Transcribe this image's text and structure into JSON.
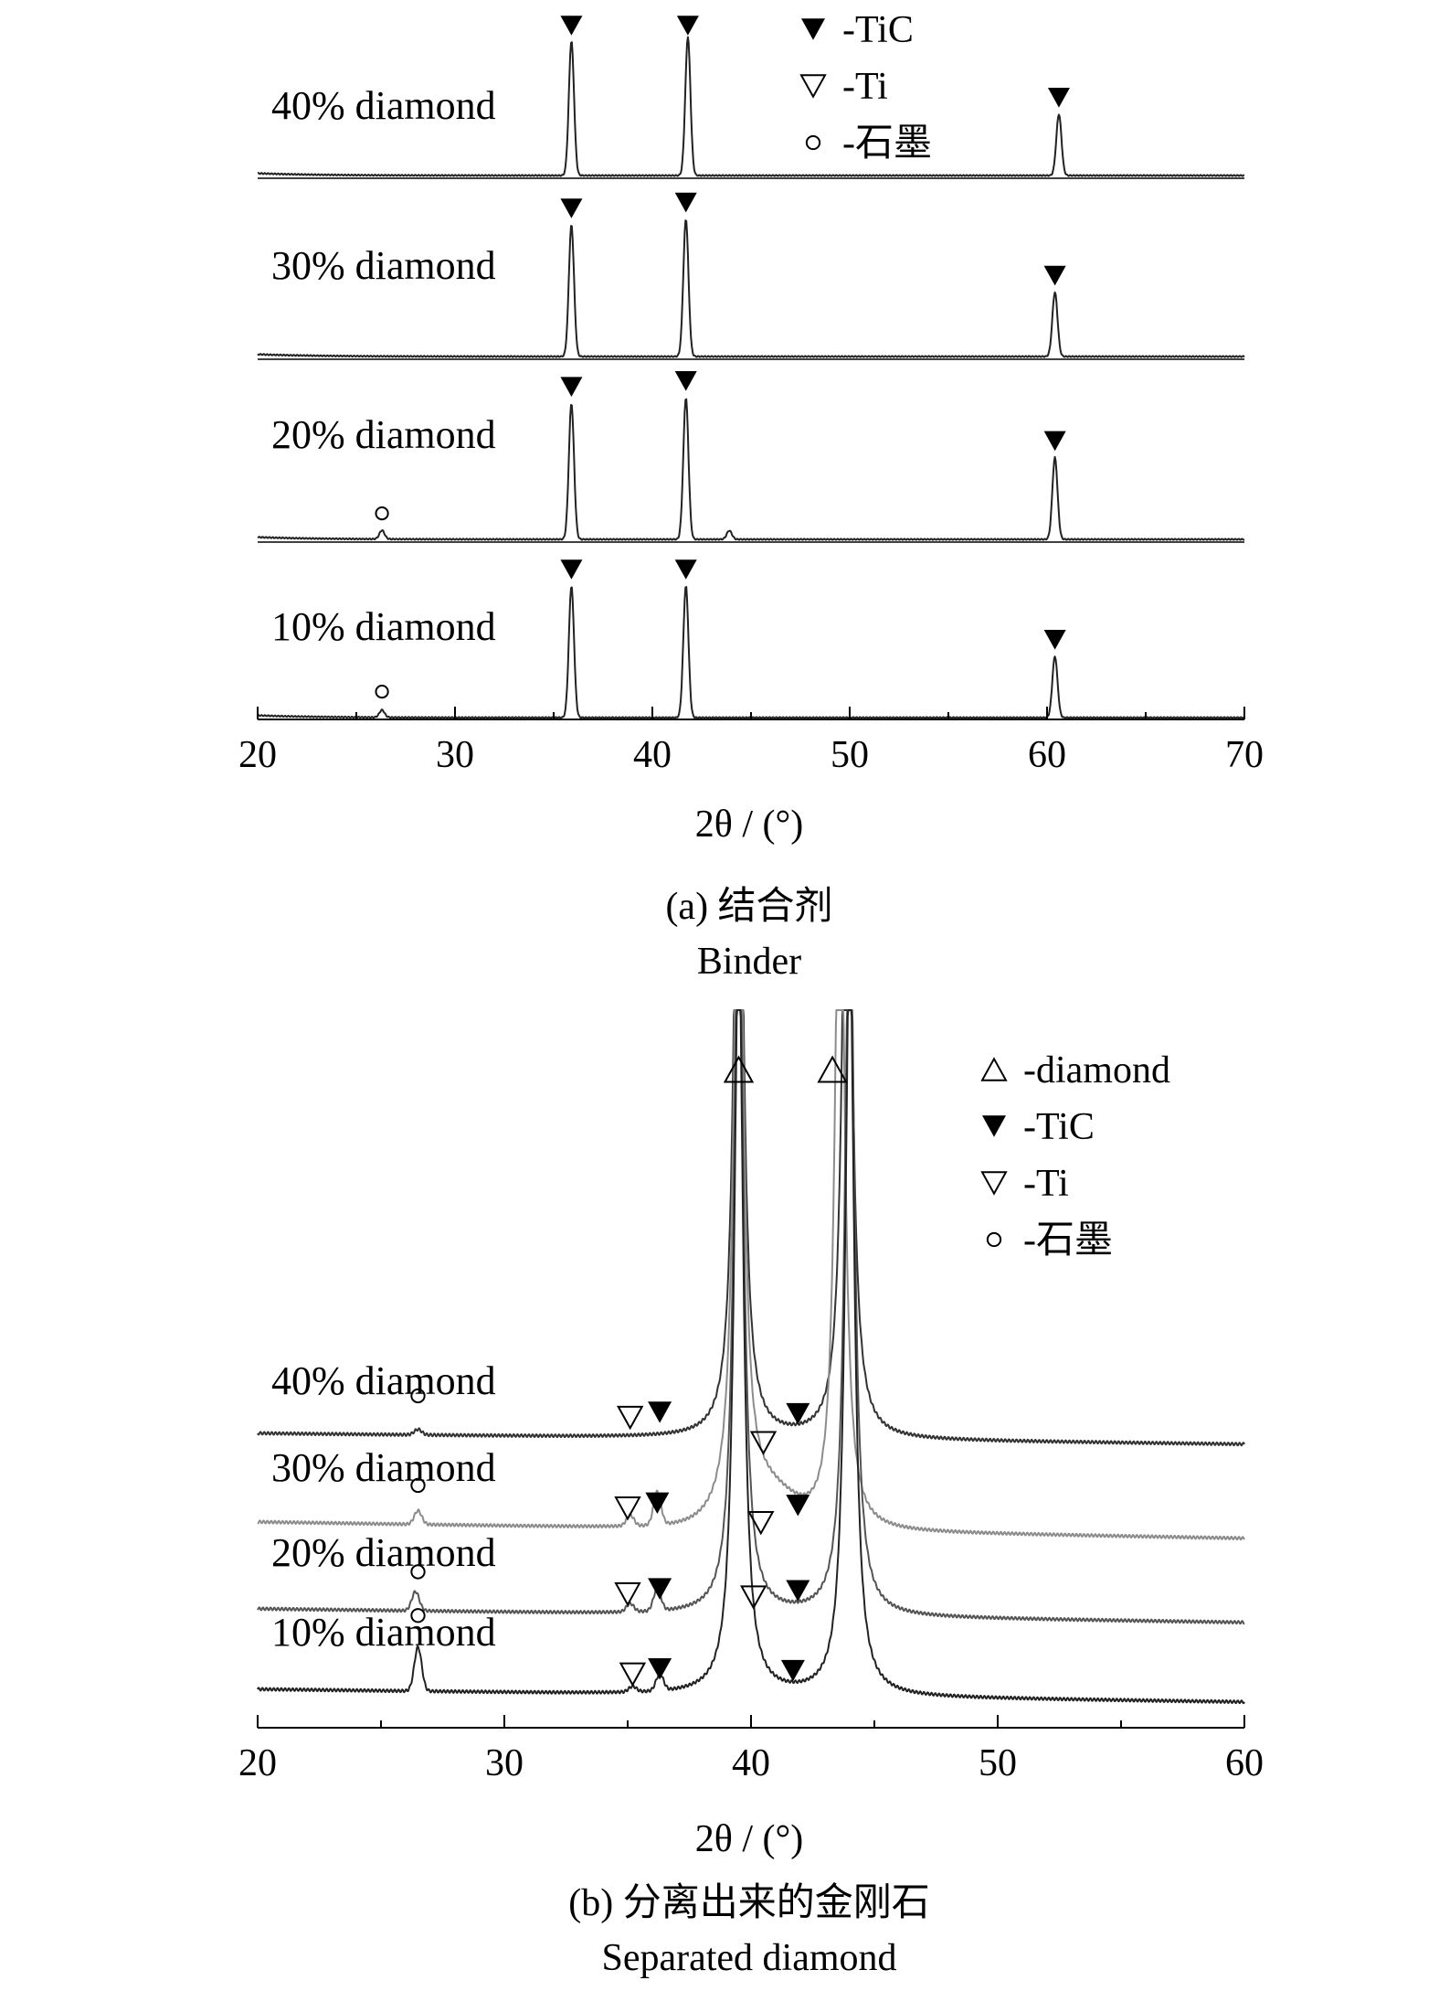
{
  "chart_data": [
    {
      "type": "line",
      "panel": "a",
      "xlabel": "2θ / (°)",
      "xlim": [
        20,
        70
      ],
      "xticks": [
        20,
        30,
        40,
        50,
        60,
        70
      ],
      "caption_cn": "(a) 结合剂",
      "caption_en": "Binder",
      "legend": [
        {
          "marker": "filled-down-triangle",
          "label": "-TiC"
        },
        {
          "marker": "open-down-triangle",
          "label": "-Ti"
        },
        {
          "marker": "open-circle",
          "label": "-石墨"
        }
      ],
      "series": [
        {
          "name": "40% diamond",
          "peaks": [
            {
              "x": 35.9,
              "h": 0.92,
              "phase": "TiC"
            },
            {
              "x": 41.8,
              "h": 0.95,
              "phase": "TiC"
            },
            {
              "x": 60.6,
              "h": 0.42,
              "phase": "TiC"
            }
          ],
          "markers": [
            {
              "x": 35.9,
              "symbol": "TiC"
            },
            {
              "x": 41.8,
              "symbol": "TiC"
            },
            {
              "x": 60.6,
              "symbol": "TiC"
            }
          ]
        },
        {
          "name": "30% diamond",
          "peaks": [
            {
              "x": 35.9,
              "h": 0.9,
              "phase": "TiC"
            },
            {
              "x": 41.7,
              "h": 0.94,
              "phase": "TiC"
            },
            {
              "x": 60.4,
              "h": 0.44,
              "phase": "TiC"
            }
          ],
          "markers": [
            {
              "x": 35.9,
              "symbol": "TiC"
            },
            {
              "x": 41.7,
              "symbol": "TiC"
            },
            {
              "x": 60.4,
              "symbol": "TiC"
            }
          ]
        },
        {
          "name": "20% diamond",
          "peaks": [
            {
              "x": 26.3,
              "h": 0.06,
              "phase": "graphite"
            },
            {
              "x": 35.9,
              "h": 0.93,
              "phase": "TiC"
            },
            {
              "x": 41.7,
              "h": 0.97,
              "phase": "TiC"
            },
            {
              "x": 43.9,
              "h": 0.06,
              "phase": "other"
            },
            {
              "x": 60.4,
              "h": 0.56,
              "phase": "TiC"
            }
          ],
          "markers": [
            {
              "x": 26.3,
              "symbol": "graphite"
            },
            {
              "x": 35.9,
              "symbol": "TiC"
            },
            {
              "x": 41.7,
              "symbol": "TiC"
            },
            {
              "x": 60.4,
              "symbol": "TiC"
            }
          ]
        },
        {
          "name": "10% diamond",
          "peaks": [
            {
              "x": 26.3,
              "h": 0.05,
              "phase": "graphite"
            },
            {
              "x": 35.9,
              "h": 0.9,
              "phase": "TiC"
            },
            {
              "x": 41.7,
              "h": 0.9,
              "phase": "TiC"
            },
            {
              "x": 60.4,
              "h": 0.42,
              "phase": "TiC"
            }
          ],
          "markers": [
            {
              "x": 26.3,
              "symbol": "graphite"
            },
            {
              "x": 35.9,
              "symbol": "TiC"
            },
            {
              "x": 41.7,
              "symbol": "TiC"
            },
            {
              "x": 60.4,
              "symbol": "TiC"
            }
          ]
        }
      ]
    },
    {
      "type": "line",
      "panel": "b",
      "xlabel": "2θ / (°)",
      "xlim": [
        20,
        60
      ],
      "xticks": [
        20,
        30,
        40,
        50,
        60
      ],
      "caption_cn": "(b) 分离出来的金刚石",
      "caption_en": "Separated diamond",
      "legend": [
        {
          "marker": "open-up-triangle",
          "label": "-diamond"
        },
        {
          "marker": "filled-down-triangle",
          "label": "-TiC"
        },
        {
          "marker": "open-down-triangle",
          "label": "-Ti"
        },
        {
          "marker": "open-circle",
          "label": "-石墨"
        }
      ],
      "diamond_markers": [
        {
          "x": 39.5
        },
        {
          "x": 43.3
        }
      ],
      "series": [
        {
          "name": "40% diamond",
          "color": "#333333",
          "peaks": [
            {
              "x": 26.5,
              "h": 0.02
            },
            {
              "x": 39.5,
              "h": 1.2,
              "phase": "diamond"
            },
            {
              "x": 43.9,
              "h": 1.2,
              "phase": "diamond"
            }
          ],
          "markers": [
            {
              "x": 26.5,
              "symbol": "graphite"
            },
            {
              "x": 35.1,
              "symbol": "Ti"
            },
            {
              "x": 36.3,
              "symbol": "TiC"
            },
            {
              "x": 41.9,
              "symbol": "TiC"
            }
          ]
        },
        {
          "name": "30% diamond",
          "color": "#8c8c8c",
          "peaks": [
            {
              "x": 26.5,
              "h": 0.05
            },
            {
              "x": 35.1,
              "h": 0.04
            },
            {
              "x": 36.2,
              "h": 0.12
            },
            {
              "x": 39.5,
              "h": 1.2,
              "phase": "diamond"
            },
            {
              "x": 43.6,
              "h": 1.2,
              "phase": "diamond"
            }
          ],
          "markers": [
            {
              "x": 26.5,
              "symbol": "graphite"
            },
            {
              "x": 35.0,
              "symbol": "Ti"
            },
            {
              "x": 36.2,
              "symbol": "TiC"
            },
            {
              "x": 40.5,
              "symbol": "Ti"
            },
            {
              "x": 41.9,
              "symbol": "TiC"
            }
          ]
        },
        {
          "name": "20% diamond",
          "color": "#555555",
          "peaks": [
            {
              "x": 26.4,
              "h": 0.07
            },
            {
              "x": 35.1,
              "h": 0.03
            },
            {
              "x": 36.2,
              "h": 0.08
            },
            {
              "x": 39.5,
              "h": 1.2,
              "phase": "diamond"
            },
            {
              "x": 44.0,
              "h": 1.2,
              "phase": "diamond"
            }
          ],
          "markers": [
            {
              "x": 26.5,
              "symbol": "graphite"
            },
            {
              "x": 35.0,
              "symbol": "Ti"
            },
            {
              "x": 36.3,
              "symbol": "TiC"
            },
            {
              "x": 40.4,
              "symbol": "Ti"
            },
            {
              "x": 41.9,
              "symbol": "TiC"
            }
          ]
        },
        {
          "name": "10% diamond",
          "color": "#222222",
          "peaks": [
            {
              "x": 26.5,
              "h": 0.16
            },
            {
              "x": 35.2,
              "h": 0.02
            },
            {
              "x": 36.3,
              "h": 0.06
            },
            {
              "x": 39.5,
              "h": 1.2,
              "phase": "diamond"
            },
            {
              "x": 44.0,
              "h": 1.2,
              "phase": "diamond"
            }
          ],
          "markers": [
            {
              "x": 26.5,
              "symbol": "graphite"
            },
            {
              "x": 35.2,
              "symbol": "Ti"
            },
            {
              "x": 36.3,
              "symbol": "TiC"
            },
            {
              "x": 40.1,
              "symbol": "Ti"
            },
            {
              "x": 41.7,
              "symbol": "TiC"
            }
          ]
        }
      ]
    }
  ]
}
